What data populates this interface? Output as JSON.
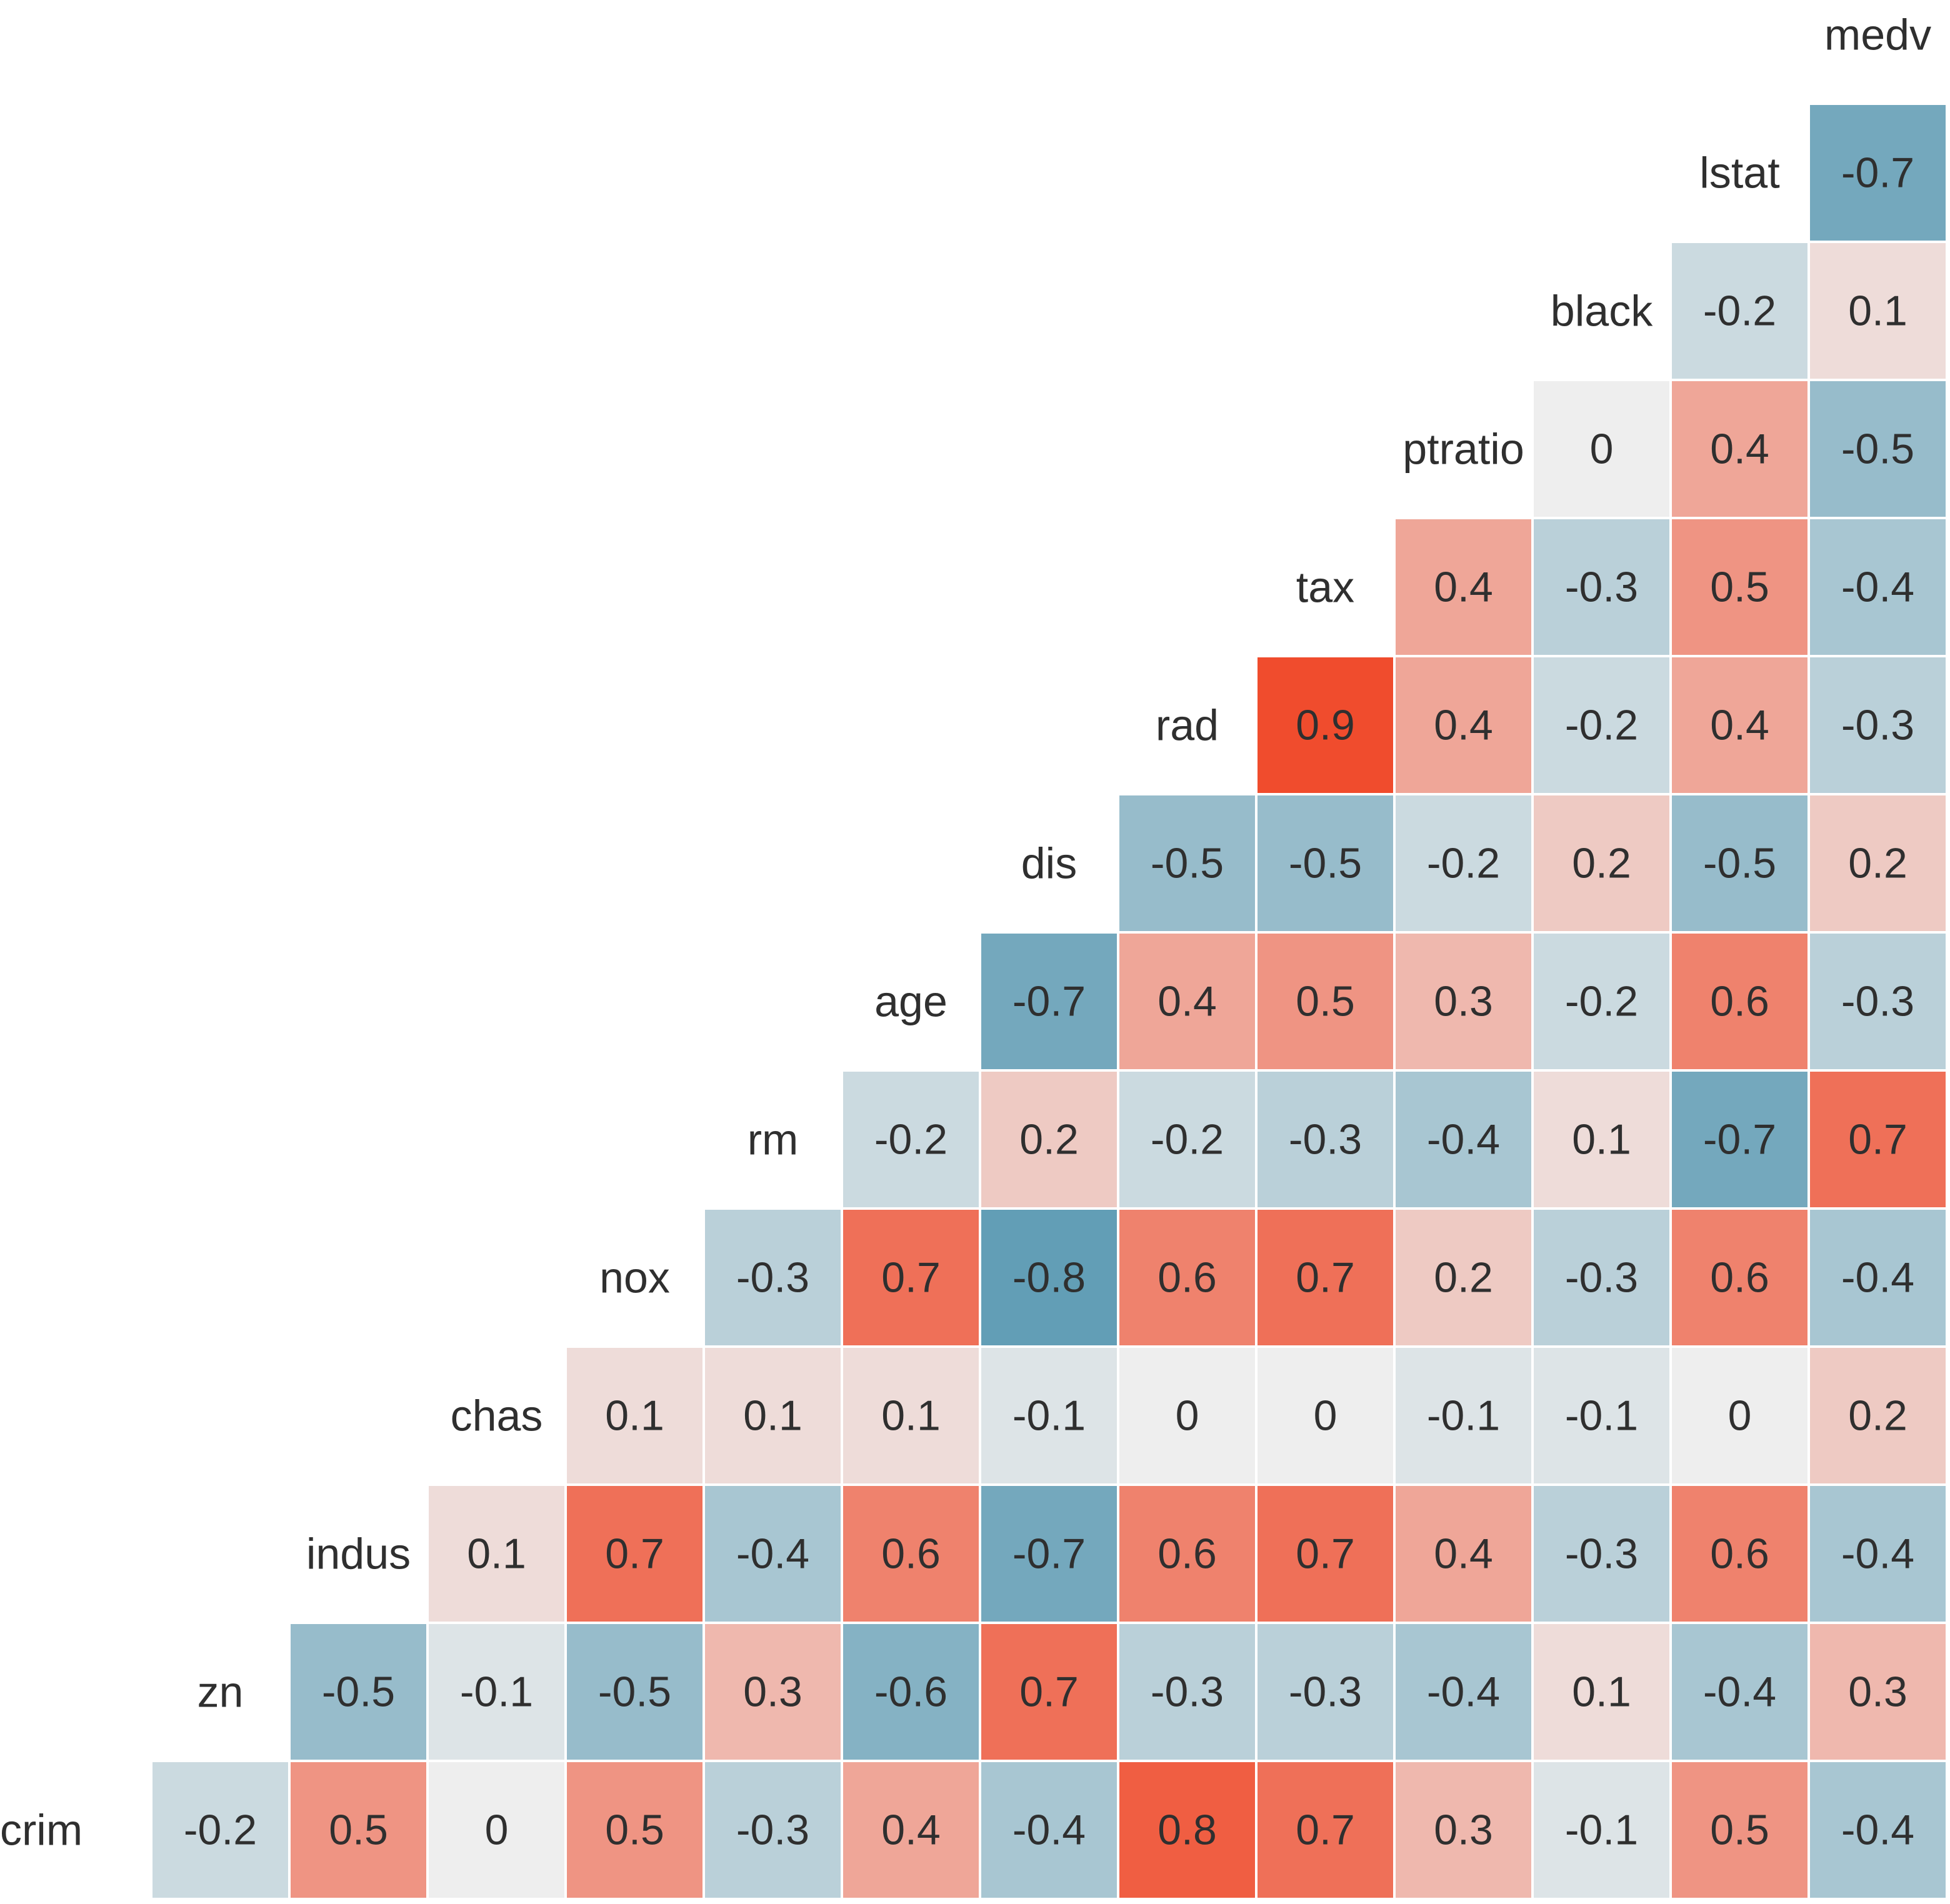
{
  "chart_data": {
    "type": "heatmap",
    "title": "",
    "variables": [
      "crim",
      "zn",
      "indus",
      "chas",
      "nox",
      "rm",
      "age",
      "dis",
      "rad",
      "tax",
      "ptratio",
      "black",
      "lstat",
      "medv"
    ],
    "matrix": [
      [
        null,
        -0.2,
        0.5,
        0,
        0.5,
        -0.3,
        0.4,
        -0.4,
        0.8,
        0.7,
        0.3,
        -0.1,
        0.5,
        -0.4
      ],
      [
        null,
        null,
        -0.5,
        -0.1,
        -0.5,
        0.3,
        -0.6,
        0.7,
        -0.3,
        -0.3,
        -0.4,
        0.1,
        -0.4,
        0.3
      ],
      [
        null,
        null,
        null,
        0.1,
        0.7,
        -0.4,
        0.6,
        -0.7,
        0.6,
        0.7,
        0.4,
        -0.3,
        0.6,
        -0.4
      ],
      [
        null,
        null,
        null,
        null,
        0.1,
        0.1,
        0.1,
        -0.1,
        0,
        0,
        -0.1,
        -0.1,
        0,
        0.2
      ],
      [
        null,
        null,
        null,
        null,
        null,
        -0.3,
        0.7,
        -0.8,
        0.6,
        0.7,
        0.2,
        -0.3,
        0.6,
        -0.4
      ],
      [
        null,
        null,
        null,
        null,
        null,
        null,
        -0.2,
        0.2,
        -0.2,
        -0.3,
        -0.4,
        0.1,
        -0.7,
        0.7
      ],
      [
        null,
        null,
        null,
        null,
        null,
        null,
        null,
        -0.7,
        0.4,
        0.5,
        0.3,
        -0.2,
        0.6,
        -0.3
      ],
      [
        null,
        null,
        null,
        null,
        null,
        null,
        null,
        null,
        -0.5,
        -0.5,
        -0.2,
        0.2,
        -0.5,
        0.2
      ],
      [
        null,
        null,
        null,
        null,
        null,
        null,
        null,
        null,
        null,
        0.9,
        0.4,
        -0.2,
        0.4,
        -0.3
      ],
      [
        null,
        null,
        null,
        null,
        null,
        null,
        null,
        null,
        null,
        null,
        0.4,
        -0.3,
        0.5,
        -0.4
      ],
      [
        null,
        null,
        null,
        null,
        null,
        null,
        null,
        null,
        null,
        null,
        null,
        0,
        0.4,
        -0.5
      ],
      [
        null,
        null,
        null,
        null,
        null,
        null,
        null,
        null,
        null,
        null,
        null,
        null,
        -0.2,
        0.1
      ],
      [
        null,
        null,
        null,
        null,
        null,
        null,
        null,
        null,
        null,
        null,
        null,
        null,
        null,
        -0.7
      ],
      [
        null,
        null,
        null,
        null,
        null,
        null,
        null,
        null,
        null,
        null,
        null,
        null,
        null,
        null
      ]
    ],
    "color_scale": {
      "min": -1,
      "max": 1,
      "negative_color": "#3f8aa8",
      "neutral_color": "#eeeeee",
      "positive_color": "#f03a17"
    },
    "legend": "none",
    "grid": false
  }
}
